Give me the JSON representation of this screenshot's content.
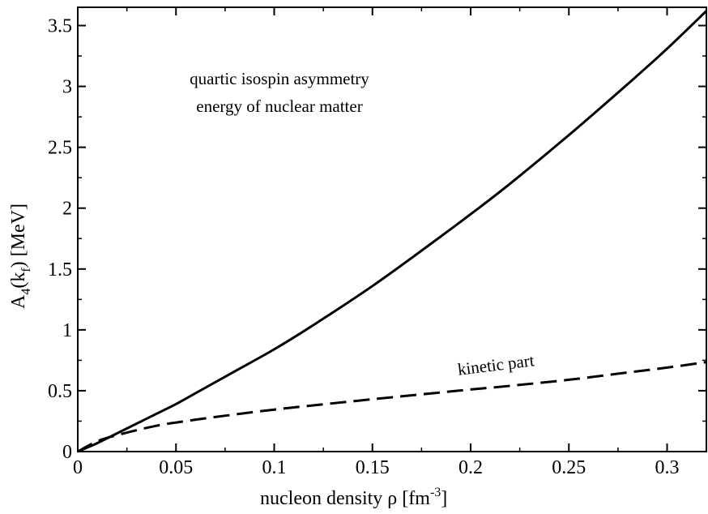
{
  "chart_data": {
    "type": "line",
    "xlabel": {
      "main": "nucleon density   ρ [fm",
      "sup": "-3",
      "tail": "]"
    },
    "ylabel": {
      "a": "A",
      "a_sub": "4",
      "k": "(k",
      "k_sub": "f",
      "tail": ")   [MeV]"
    },
    "xlim": [
      0,
      0.32
    ],
    "ylim": [
      0,
      3.65
    ],
    "xticks": [
      0,
      0.05,
      0.1,
      0.15,
      0.2,
      0.25,
      0.3
    ],
    "xtick_labels": [
      "0",
      "0.05",
      "0.1",
      "0.15",
      "0.2",
      "0.25",
      "0.3"
    ],
    "yticks": [
      0,
      0.5,
      1,
      1.5,
      2,
      2.5,
      3,
      3.5
    ],
    "ytick_labels": [
      "0",
      "0.5",
      "1",
      "1.5",
      "2",
      "2.5",
      "3",
      "3.5"
    ],
    "x_minor_step": 0.025,
    "y_minor_step": 0.25,
    "grid": false,
    "annotations": {
      "title_line1": "quartic isospin asymmetry",
      "title_line2": "energy of nuclear matter",
      "kinetic": "kinetic part"
    },
    "series": [
      {
        "style": "solid",
        "x": [
          0,
          0.01,
          0.02,
          0.03,
          0.04,
          0.05,
          0.06,
          0.08,
          0.1,
          0.12,
          0.15,
          0.18,
          0.2,
          0.22,
          0.25,
          0.28,
          0.3,
          0.32
        ],
        "y": [
          0,
          0.07,
          0.15,
          0.23,
          0.31,
          0.39,
          0.48,
          0.66,
          0.84,
          1.04,
          1.36,
          1.71,
          1.95,
          2.2,
          2.6,
          3.02,
          3.31,
          3.62
        ]
      },
      {
        "style": "dashed",
        "x": [
          0,
          0.01,
          0.02,
          0.04,
          0.06,
          0.08,
          0.1,
          0.12,
          0.15,
          0.18,
          0.2,
          0.22,
          0.25,
          0.28,
          0.3,
          0.32
        ],
        "y": [
          0,
          0.085,
          0.135,
          0.212,
          0.262,
          0.305,
          0.345,
          0.38,
          0.43,
          0.478,
          0.51,
          0.54,
          0.59,
          0.65,
          0.69,
          0.735
        ]
      }
    ]
  }
}
